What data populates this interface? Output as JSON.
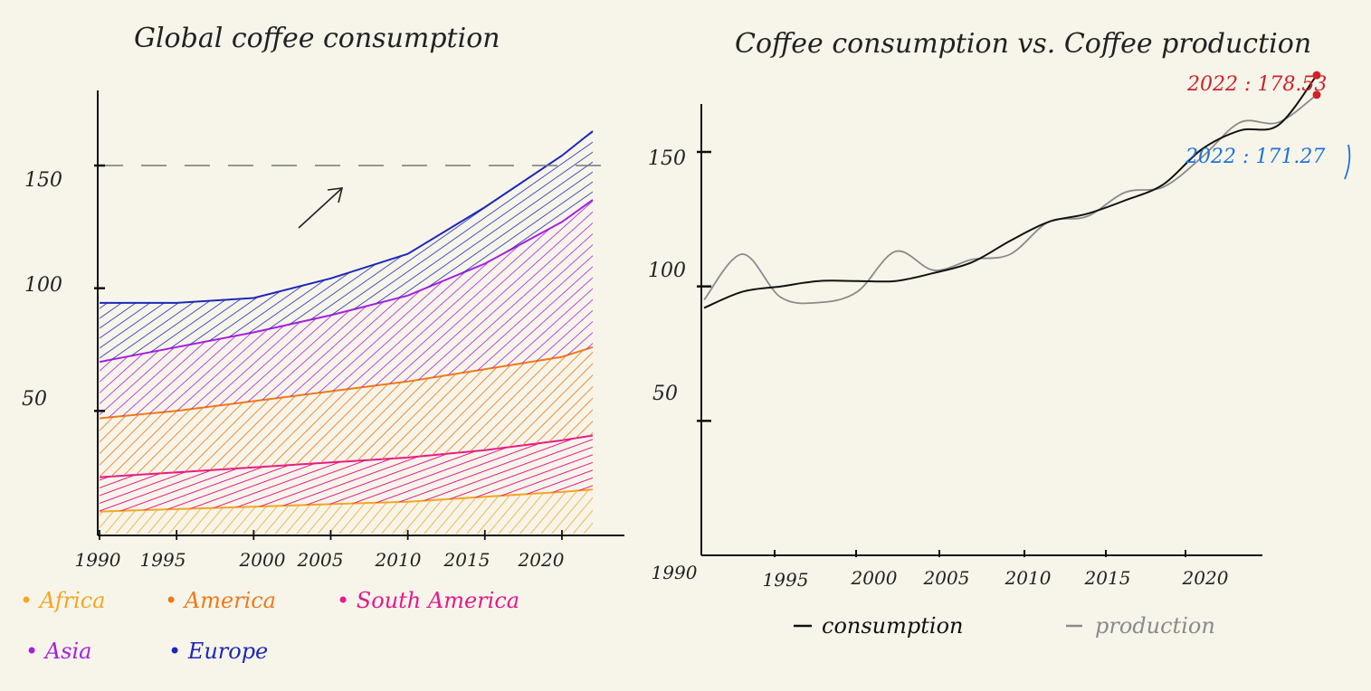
{
  "chart_data": [
    {
      "type": "area",
      "stacked": true,
      "title": "Global coffee consumption",
      "x": [
        1990,
        1995,
        2000,
        2005,
        2010,
        2015,
        2020,
        2022
      ],
      "x_tick_labels": [
        "1990",
        "1995",
        "2000",
        "2005",
        "2010",
        "2015",
        "2020"
      ],
      "y_tick_labels": [
        "50",
        "100",
        "150"
      ],
      "ylim": [
        0,
        180
      ],
      "reference_line": 150,
      "series": [
        {
          "name": "Africa",
          "color": "#f5a623",
          "values": [
            9,
            10,
            11,
            12,
            13,
            15,
            17,
            18
          ]
        },
        {
          "name": "South America",
          "color": "#e8198b",
          "values": [
            14,
            15,
            16,
            17,
            18,
            19,
            21,
            22
          ]
        },
        {
          "name": "America",
          "color": "#f07a17",
          "values": [
            24,
            25,
            27,
            29,
            31,
            33,
            34,
            36
          ]
        },
        {
          "name": "Asia",
          "color": "#a81fe0",
          "values": [
            23,
            26,
            28,
            31,
            35,
            43,
            55,
            60
          ]
        },
        {
          "name": "Europe",
          "color": "#1d28b8",
          "values": [
            24,
            18,
            14,
            15,
            17,
            23,
            27,
            28
          ]
        }
      ],
      "legend": {
        "placement": "bottom",
        "items": [
          {
            "label": "Africa",
            "color": "#f5a623"
          },
          {
            "label": "America",
            "color": "#f07a17"
          },
          {
            "label": "South America",
            "color": "#e8198b"
          },
          {
            "label": "Asia",
            "color": "#a81fe0"
          },
          {
            "label": "Europe",
            "color": "#1d28b8"
          }
        ]
      }
    },
    {
      "type": "line",
      "title": "Coffee consumption vs. Coffee production",
      "x": [
        1990,
        1992,
        1994,
        1996,
        1998,
        2000,
        2002,
        2004,
        2006,
        2008,
        2010,
        2012,
        2014,
        2016,
        2018,
        2020,
        2022
      ],
      "x_tick_labels": [
        "1990",
        "1995",
        "2000",
        "2005",
        "2010",
        "2015",
        "2020"
      ],
      "y_tick_labels": [
        "50",
        "100",
        "150"
      ],
      "ylim": [
        0,
        175
      ],
      "series": [
        {
          "name": "consumption",
          "color": "#111111",
          "values": [
            92,
            98,
            100,
            102,
            102,
            102,
            105,
            109,
            117,
            124,
            127,
            132,
            138,
            151,
            158,
            160,
            178.53
          ]
        },
        {
          "name": "production",
          "color": "#8a8a8a",
          "values": [
            95,
            112,
            96,
            94,
            98,
            113,
            106,
            110,
            112,
            124,
            126,
            135,
            137,
            148,
            161,
            161,
            171.27
          ]
        }
      ],
      "annotations": [
        {
          "text": "2022 : 178.53",
          "color": "#d0202a"
        },
        {
          "text": "2022 : 171.27",
          "color": "#1e73d8"
        }
      ],
      "legend": {
        "placement": "bottom",
        "items": [
          {
            "label": "consumption",
            "color": "#111111"
          },
          {
            "label": "production",
            "color": "#8a8a8a"
          }
        ]
      }
    }
  ]
}
